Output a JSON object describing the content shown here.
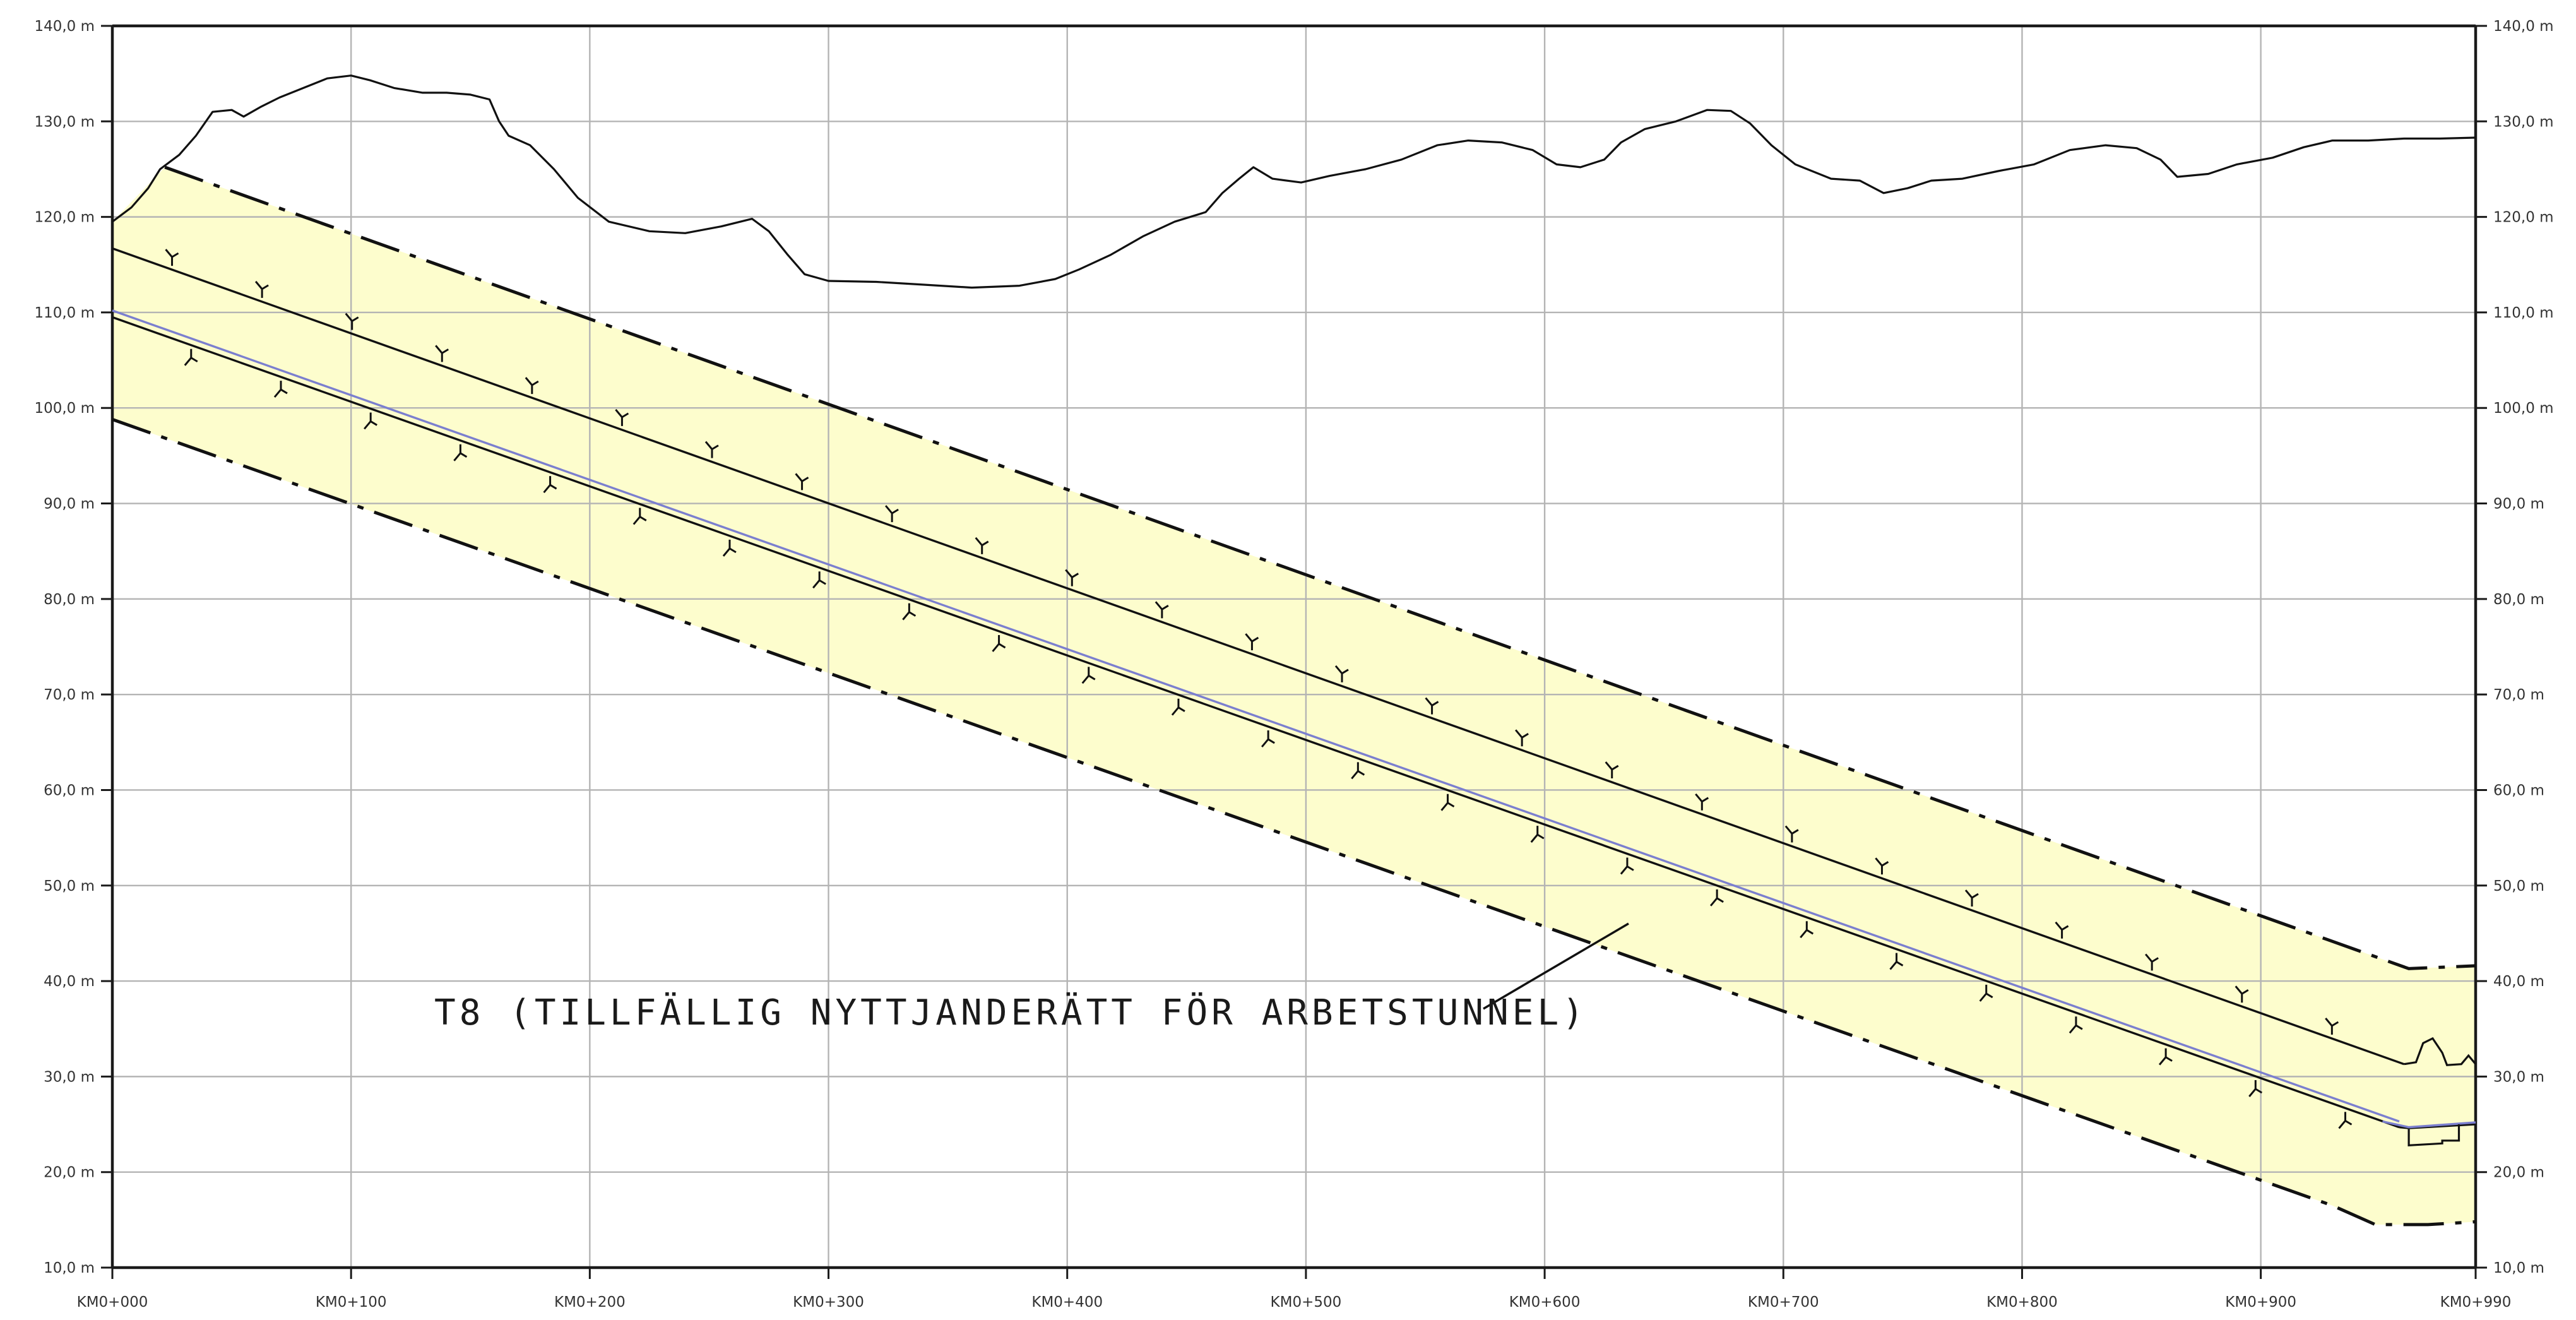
{
  "chart_data": {
    "type": "line",
    "ylim": [
      10,
      140
    ],
    "xlim": [
      0,
      990
    ],
    "y_ticks": [
      {
        "value": 10,
        "label": "10,0 m"
      },
      {
        "value": 20,
        "label": "20,0 m"
      },
      {
        "value": 30,
        "label": "30,0 m"
      },
      {
        "value": 40,
        "label": "40,0 m"
      },
      {
        "value": 50,
        "label": "50,0 m"
      },
      {
        "value": 60,
        "label": "60,0 m"
      },
      {
        "value": 70,
        "label": "70,0 m"
      },
      {
        "value": 80,
        "label": "80,0 m"
      },
      {
        "value": 90,
        "label": "90,0 m"
      },
      {
        "value": 100,
        "label": "100,0 m"
      },
      {
        "value": 110,
        "label": "110,0 m"
      },
      {
        "value": 120,
        "label": "120,0 m"
      },
      {
        "value": 130,
        "label": "130,0 m"
      },
      {
        "value": 140,
        "label": "140,0 m"
      }
    ],
    "x_ticks": [
      {
        "value": 0,
        "label": "KM0+000"
      },
      {
        "value": 100,
        "label": "KM0+100"
      },
      {
        "value": 200,
        "label": "KM0+200"
      },
      {
        "value": 300,
        "label": "KM0+300"
      },
      {
        "value": 400,
        "label": "KM0+400"
      },
      {
        "value": 500,
        "label": "KM0+500"
      },
      {
        "value": 600,
        "label": "KM0+600"
      },
      {
        "value": 700,
        "label": "KM0+700"
      },
      {
        "value": 800,
        "label": "KM0+800"
      },
      {
        "value": 900,
        "label": "KM0+900"
      },
      {
        "value": 990,
        "label": "KM0+990"
      }
    ],
    "grid": true,
    "annotation": "T8 (TILLFÄLLIG NYTTJANDERÄTT FÖR ARBETSTUNNEL)",
    "zone_color": "#fdfdcd",
    "centre_line_color": "#7b7fcf",
    "terrain": [
      [
        0,
        119.5
      ],
      [
        8,
        121
      ],
      [
        15,
        123
      ],
      [
        20,
        125
      ],
      [
        28,
        126.5
      ],
      [
        35,
        128.5
      ],
      [
        42,
        131
      ],
      [
        50,
        131.2
      ],
      [
        55,
        130.5
      ],
      [
        62,
        131.5
      ],
      [
        70,
        132.5
      ],
      [
        80,
        133.5
      ],
      [
        90,
        134.5
      ],
      [
        100,
        134.8
      ],
      [
        108,
        134.3
      ],
      [
        118,
        133.5
      ],
      [
        130,
        133
      ],
      [
        140,
        133
      ],
      [
        150,
        132.8
      ],
      [
        158,
        132.3
      ],
      [
        162,
        130
      ],
      [
        166,
        128.5
      ],
      [
        175,
        127.5
      ],
      [
        185,
        125
      ],
      [
        195,
        122
      ],
      [
        208,
        119.5
      ],
      [
        225,
        118.5
      ],
      [
        240,
        118.3
      ],
      [
        255,
        119
      ],
      [
        268,
        119.8
      ],
      [
        275,
        118.5
      ],
      [
        283,
        116
      ],
      [
        290,
        114
      ],
      [
        300,
        113.3
      ],
      [
        320,
        113.2
      ],
      [
        340,
        112.9
      ],
      [
        360,
        112.6
      ],
      [
        380,
        112.8
      ],
      [
        395,
        113.5
      ],
      [
        405,
        114.5
      ],
      [
        418,
        116
      ],
      [
        432,
        118
      ],
      [
        445,
        119.5
      ],
      [
        458,
        120.5
      ],
      [
        465,
        122.5
      ],
      [
        472,
        124
      ],
      [
        478,
        125.2
      ],
      [
        486,
        124
      ],
      [
        498,
        123.6
      ],
      [
        510,
        124.3
      ],
      [
        525,
        125
      ],
      [
        540,
        126
      ],
      [
        555,
        127.5
      ],
      [
        568,
        128
      ],
      [
        582,
        127.8
      ],
      [
        595,
        127
      ],
      [
        605,
        125.5
      ],
      [
        615,
        125.2
      ],
      [
        625,
        126
      ],
      [
        632,
        127.8
      ],
      [
        642,
        129.2
      ],
      [
        655,
        130
      ],
      [
        668,
        131.2
      ],
      [
        678,
        131.1
      ],
      [
        686,
        129.8
      ],
      [
        695,
        127.5
      ],
      [
        705,
        125.5
      ],
      [
        720,
        124
      ],
      [
        732,
        123.8
      ],
      [
        742,
        122.5
      ],
      [
        752,
        123
      ],
      [
        762,
        123.8
      ],
      [
        775,
        124
      ],
      [
        790,
        124.8
      ],
      [
        805,
        125.5
      ],
      [
        820,
        127
      ],
      [
        835,
        127.5
      ],
      [
        848,
        127.2
      ],
      [
        858,
        126
      ],
      [
        865,
        124.2
      ],
      [
        878,
        124.5
      ],
      [
        890,
        125.5
      ],
      [
        905,
        126.2
      ],
      [
        918,
        127.3
      ],
      [
        930,
        128
      ],
      [
        945,
        128
      ],
      [
        960,
        128.2
      ],
      [
        975,
        128.2
      ],
      [
        990,
        128.3
      ]
    ],
    "tunnel_roof": [
      [
        0,
        116.7
      ],
      [
        960,
        31.3
      ]
    ],
    "tunnel_floor": [
      [
        0,
        109.5
      ],
      [
        958,
        24.7
      ]
    ],
    "tunnel_centre": [
      [
        0,
        110.2
      ],
      [
        958,
        25.3
      ]
    ],
    "boundary_upper": [
      [
        22,
        125.2
      ],
      [
        962,
        41.3
      ],
      [
        990,
        41.6
      ]
    ],
    "boundary_lower": [
      [
        0,
        98.8
      ],
      [
        930,
        16.5
      ],
      [
        948,
        14.5
      ],
      [
        970,
        14.5
      ],
      [
        990,
        14.8
      ]
    ]
  }
}
